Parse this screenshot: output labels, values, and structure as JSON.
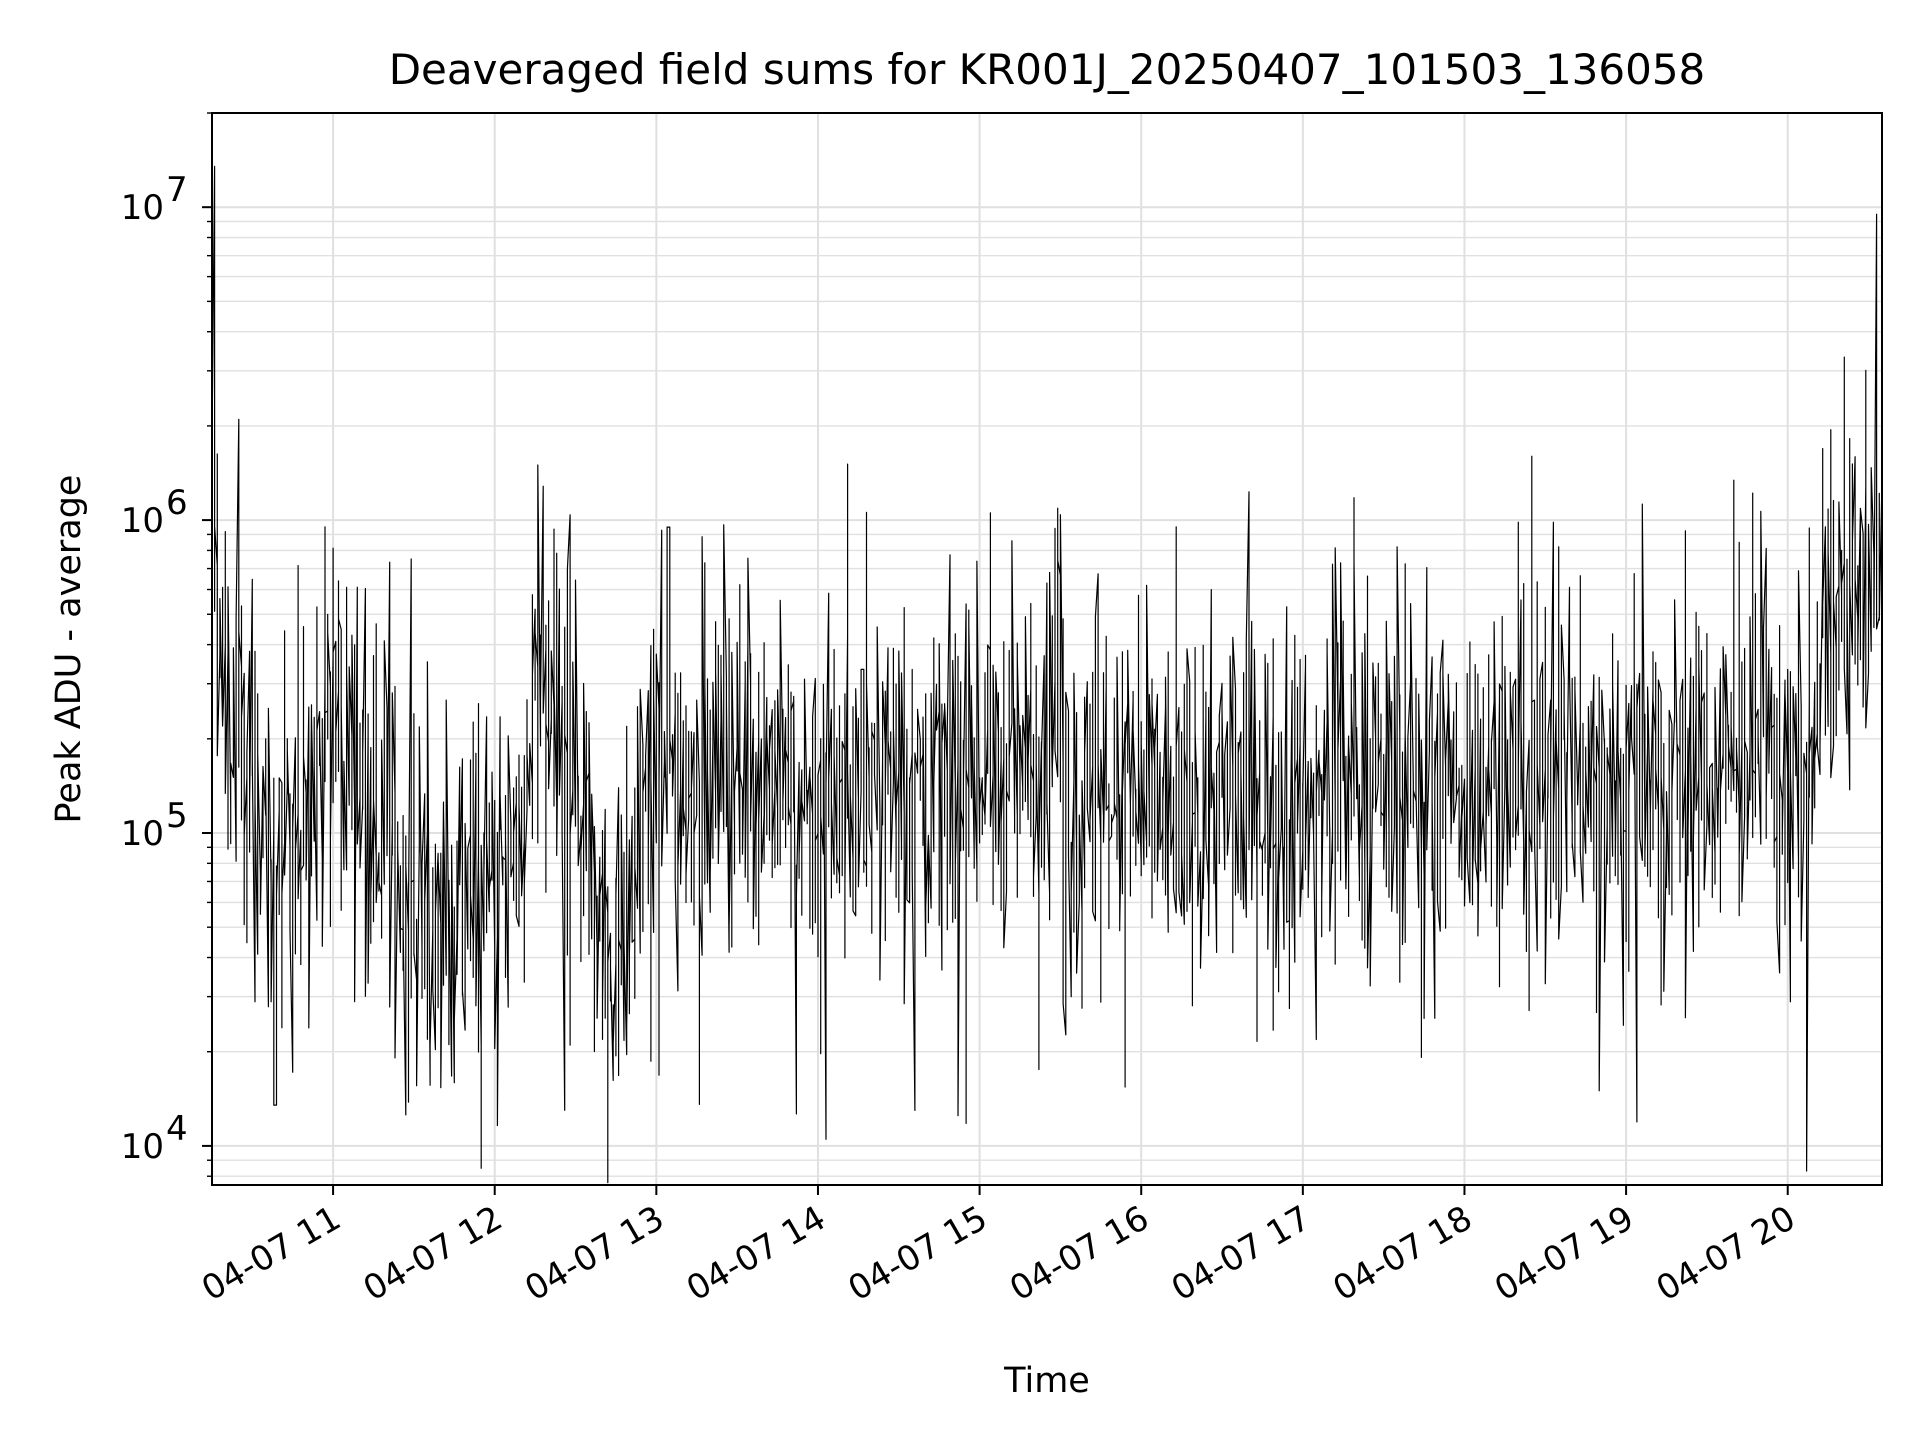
{
  "chart_data": {
    "type": "line",
    "title": "Deaveraged field sums for KR001J_20250407_101503_136058",
    "xlabel": "Time",
    "ylabel": "Peak ADU - average",
    "yscale": "log",
    "grid": true,
    "legend": "none",
    "line_color": "#000000",
    "grid_color": "#e0e0e0",
    "xlim": [
      "2025-04-07 10:15:03",
      "2025-04-07 20:35:00"
    ],
    "ylim": [
      7500,
      20000000
    ],
    "x_ticks": [
      {
        "value": "2025-04-07 11:00",
        "label": "04-07 11"
      },
      {
        "value": "2025-04-07 12:00",
        "label": "04-07 12"
      },
      {
        "value": "2025-04-07 13:00",
        "label": "04-07 13"
      },
      {
        "value": "2025-04-07 14:00",
        "label": "04-07 14"
      },
      {
        "value": "2025-04-07 15:00",
        "label": "04-07 15"
      },
      {
        "value": "2025-04-07 16:00",
        "label": "04-07 16"
      },
      {
        "value": "2025-04-07 17:00",
        "label": "04-07 17"
      },
      {
        "value": "2025-04-07 18:00",
        "label": "04-07 18"
      },
      {
        "value": "2025-04-07 19:00",
        "label": "04-07 19"
      },
      {
        "value": "2025-04-07 20:00",
        "label": "04-07 20"
      }
    ],
    "y_ticks": [
      {
        "value": 10000,
        "base": "10",
        "exp": "4"
      },
      {
        "value": 100000,
        "base": "10",
        "exp": "5"
      },
      {
        "value": 1000000,
        "base": "10",
        "exp": "6"
      },
      {
        "value": 10000000,
        "base": "10",
        "exp": "7"
      }
    ],
    "series": [
      {
        "x": [
          "2025-04-07 10:15",
          "2025-04-07 10:17",
          "2025-04-07 10:19",
          "2025-04-07 10:21",
          "2025-04-07 10:25",
          "2025-04-07 10:30",
          "2025-04-07 10:35",
          "2025-04-07 10:40",
          "2025-04-07 10:45",
          "2025-04-07 10:50",
          "2025-04-07 10:55",
          "2025-04-07 11:00",
          "2025-04-07 11:05",
          "2025-04-07 11:10",
          "2025-04-07 11:15",
          "2025-04-07 11:20",
          "2025-04-07 11:25",
          "2025-04-07 11:30",
          "2025-04-07 11:35",
          "2025-04-07 11:40",
          "2025-04-07 11:45",
          "2025-04-07 11:50",
          "2025-04-07 11:55",
          "2025-04-07 12:00",
          "2025-04-07 12:05",
          "2025-04-07 12:10",
          "2025-04-07 12:15",
          "2025-04-07 12:20",
          "2025-04-07 12:25",
          "2025-04-07 12:30",
          "2025-04-07 12:35",
          "2025-04-07 12:40",
          "2025-04-07 12:45",
          "2025-04-07 12:50",
          "2025-04-07 12:55",
          "2025-04-07 13:00",
          "2025-04-07 13:15",
          "2025-04-07 13:30",
          "2025-04-07 13:45",
          "2025-04-07 14:00",
          "2025-04-07 14:15",
          "2025-04-07 14:30",
          "2025-04-07 14:45",
          "2025-04-07 15:00",
          "2025-04-07 15:15",
          "2025-04-07 15:30",
          "2025-04-07 15:35",
          "2025-04-07 15:45",
          "2025-04-07 16:00",
          "2025-04-07 16:30",
          "2025-04-07 17:00",
          "2025-04-07 17:30",
          "2025-04-07 18:00",
          "2025-04-07 18:30",
          "2025-04-07 19:00",
          "2025-04-07 19:30",
          "2025-04-07 20:00",
          "2025-04-07 20:08",
          "2025-04-07 20:11",
          "2025-04-07 20:15",
          "2025-04-07 20:20",
          "2025-04-07 20:25",
          "2025-04-07 20:30",
          "2025-04-07 20:35"
        ],
        "y": [
          2500000,
          600000,
          300000,
          230000,
          200000,
          170000,
          100000,
          75000,
          70000,
          120000,
          220000,
          240000,
          200000,
          150000,
          110000,
          120000,
          80000,
          55000,
          50000,
          45000,
          55000,
          60000,
          65000,
          70000,
          75000,
          70000,
          250000,
          260000,
          200000,
          160000,
          110000,
          60000,
          40000,
          60000,
          90000,
          150000,
          160000,
          170000,
          150000,
          130000,
          140000,
          150000,
          140000,
          150000,
          160000,
          220000,
          110000,
          120000,
          120000,
          130000,
          140000,
          140000,
          150000,
          155000,
          160000,
          165000,
          165000,
          140000,
          180000,
          450000,
          500000,
          520000,
          540000,
          600000
        ]
      }
    ],
    "notable_peaks": [
      {
        "x": "2025-04-07 10:16",
        "y": 13500000
      },
      {
        "x": "2025-04-07 10:25",
        "y": 2100000
      },
      {
        "x": "2025-04-07 12:17",
        "y": 1500000
      },
      {
        "x": "2025-04-07 13:05",
        "y": 950000
      },
      {
        "x": "2025-04-07 20:33",
        "y": 9500000
      }
    ],
    "notable_dips": [
      {
        "x": "2025-04-07 10:39",
        "y": 13500
      },
      {
        "x": "2025-04-07 12:26",
        "y": 13000
      },
      {
        "x": "2025-04-07 14:03",
        "y": 10500
      },
      {
        "x": "2025-04-07 14:53",
        "y": 12500
      },
      {
        "x": "2025-04-07 18:51",
        "y": 15000
      }
    ]
  }
}
